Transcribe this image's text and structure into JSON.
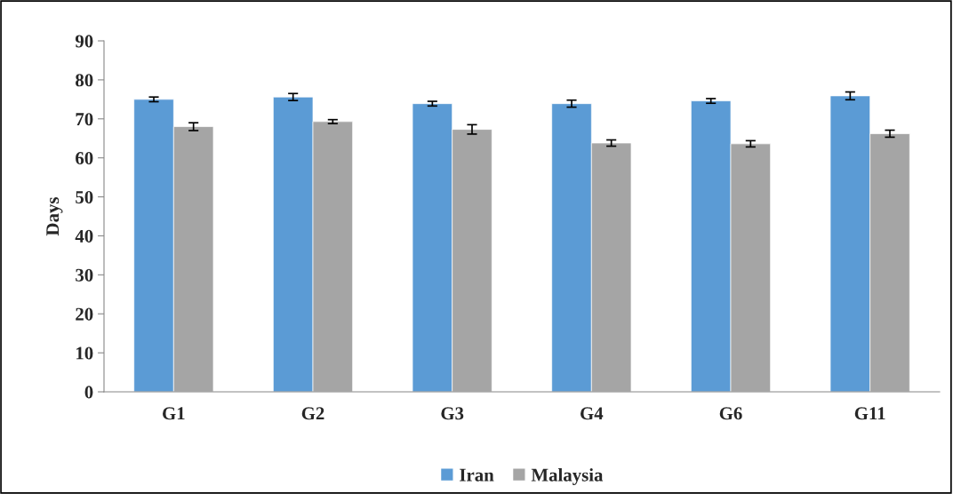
{
  "chart_data": {
    "type": "bar",
    "ylabel": "Days",
    "categories": [
      "G1",
      "G2",
      "G3",
      "G4",
      "G6",
      "G11"
    ],
    "series": [
      {
        "name": "Iran",
        "color": "#5b9bd5",
        "values": [
          75.0,
          75.6,
          73.9,
          73.9,
          74.6,
          75.9
        ],
        "errors": [
          0.6,
          0.9,
          0.6,
          0.9,
          0.6,
          1.0
        ]
      },
      {
        "name": "Malaysia",
        "color": "#a5a5a5",
        "values": [
          68.0,
          69.3,
          67.3,
          63.8,
          63.6,
          66.2
        ],
        "errors": [
          1.0,
          0.5,
          1.2,
          0.8,
          0.8,
          0.9
        ]
      }
    ],
    "ylim": [
      0,
      90
    ],
    "yticks": [
      0,
      10,
      20,
      30,
      40,
      50,
      60,
      70,
      80,
      90
    ],
    "grid": false,
    "legend": "bottom"
  }
}
